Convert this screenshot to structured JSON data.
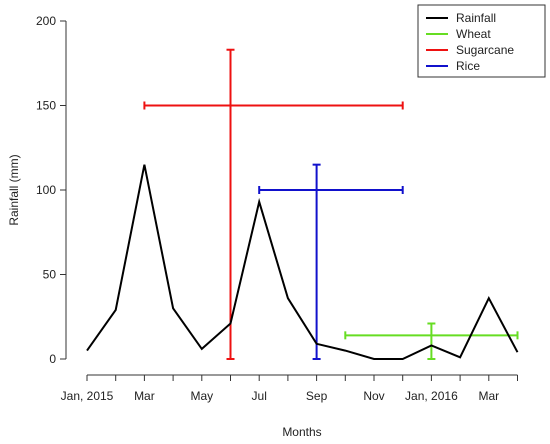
{
  "chart_data": {
    "type": "line",
    "title": "",
    "xlabel": "Months",
    "ylabel": "Rainfall (mm)",
    "ylim": [
      0,
      200
    ],
    "yticks": [
      0,
      50,
      100,
      150,
      200
    ],
    "grid": false,
    "legend_position": "top-right",
    "x_tick_labels": [
      {
        "month": "2015-01",
        "label": "Jan, 2015"
      },
      {
        "month": "2015-03",
        "label": "Mar"
      },
      {
        "month": "2015-05",
        "label": "May"
      },
      {
        "month": "2015-07",
        "label": "Jul"
      },
      {
        "month": "2015-09",
        "label": "Sep"
      },
      {
        "month": "2015-11",
        "label": "Nov"
      },
      {
        "month": "2016-01",
        "label": "Jan, 2016"
      },
      {
        "month": "2016-03",
        "label": "Mar"
      }
    ],
    "x_minor_ticks": [
      "2015-02",
      "2015-04",
      "2015-06",
      "2015-08",
      "2015-10",
      "2015-12",
      "2016-02",
      "2016-04"
    ],
    "rainfall": {
      "name": "Rainfall",
      "color": "#000000",
      "points": [
        {
          "month": "2015-01",
          "value": 5
        },
        {
          "month": "2015-02",
          "value": 29
        },
        {
          "month": "2015-03",
          "value": 115
        },
        {
          "month": "2015-04",
          "value": 30
        },
        {
          "month": "2015-05",
          "value": 6
        },
        {
          "month": "2015-06",
          "value": 21
        },
        {
          "month": "2015-07",
          "value": 93
        },
        {
          "month": "2015-08",
          "value": 36
        },
        {
          "month": "2015-09",
          "value": 9
        },
        {
          "month": "2015-10",
          "value": 5
        },
        {
          "month": "2015-11",
          "value": 0
        },
        {
          "month": "2015-12",
          "value": 0
        },
        {
          "month": "2016-01",
          "value": 8
        },
        {
          "month": "2016-02",
          "value": 1
        },
        {
          "month": "2016-03",
          "value": 36
        },
        {
          "month": "2016-04",
          "value": 4
        }
      ]
    },
    "crops": [
      {
        "name": "Wheat",
        "color": "#66dd22",
        "h_from": "2015-10",
        "h_to": "2016-04",
        "h_level": 14,
        "v_at": "2016-01",
        "v_from": 0,
        "v_to": 21
      },
      {
        "name": "Sugarcane",
        "color": "#ee1111",
        "h_from": "2015-03",
        "h_to": "2015-12",
        "h_level": 150,
        "v_at": "2015-06",
        "v_from": 0,
        "v_to": 183
      },
      {
        "name": "Rice",
        "color": "#1111cc",
        "h_from": "2015-07",
        "h_to": "2015-12",
        "h_level": 100,
        "v_at": "2015-09",
        "v_from": 0,
        "v_to": 115
      }
    ],
    "legend": [
      {
        "label": "Rainfall",
        "color": "#000000"
      },
      {
        "label": "Wheat",
        "color": "#66dd22"
      },
      {
        "label": "Sugarcane",
        "color": "#ee1111"
      },
      {
        "label": "Rice",
        "color": "#1111cc"
      }
    ]
  }
}
